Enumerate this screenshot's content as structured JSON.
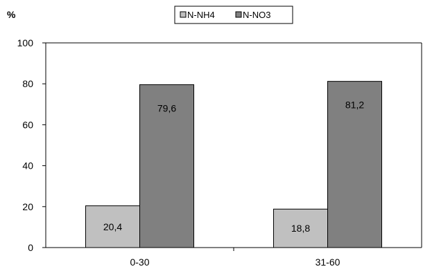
{
  "chart_data": {
    "type": "bar",
    "title": "",
    "xlabel": "",
    "ylabel": "%",
    "ylim": [
      0,
      100
    ],
    "yticks": [
      0,
      20,
      40,
      60,
      80,
      100
    ],
    "ytick_labels": [
      "0",
      "20",
      "40",
      "60",
      "80",
      "100"
    ],
    "categories": [
      "0-30",
      "31-60"
    ],
    "series": [
      {
        "name": "N-NH4",
        "values": [
          20.4,
          18.8
        ],
        "labels": [
          "20,4",
          "18,8"
        ],
        "color": "#c0c0c0"
      },
      {
        "name": "N-NO3",
        "values": [
          79.6,
          81.2
        ],
        "labels": [
          "79,6",
          "81,2"
        ],
        "color": "#808080"
      }
    ],
    "grid": false,
    "legend_position": "top-center"
  }
}
